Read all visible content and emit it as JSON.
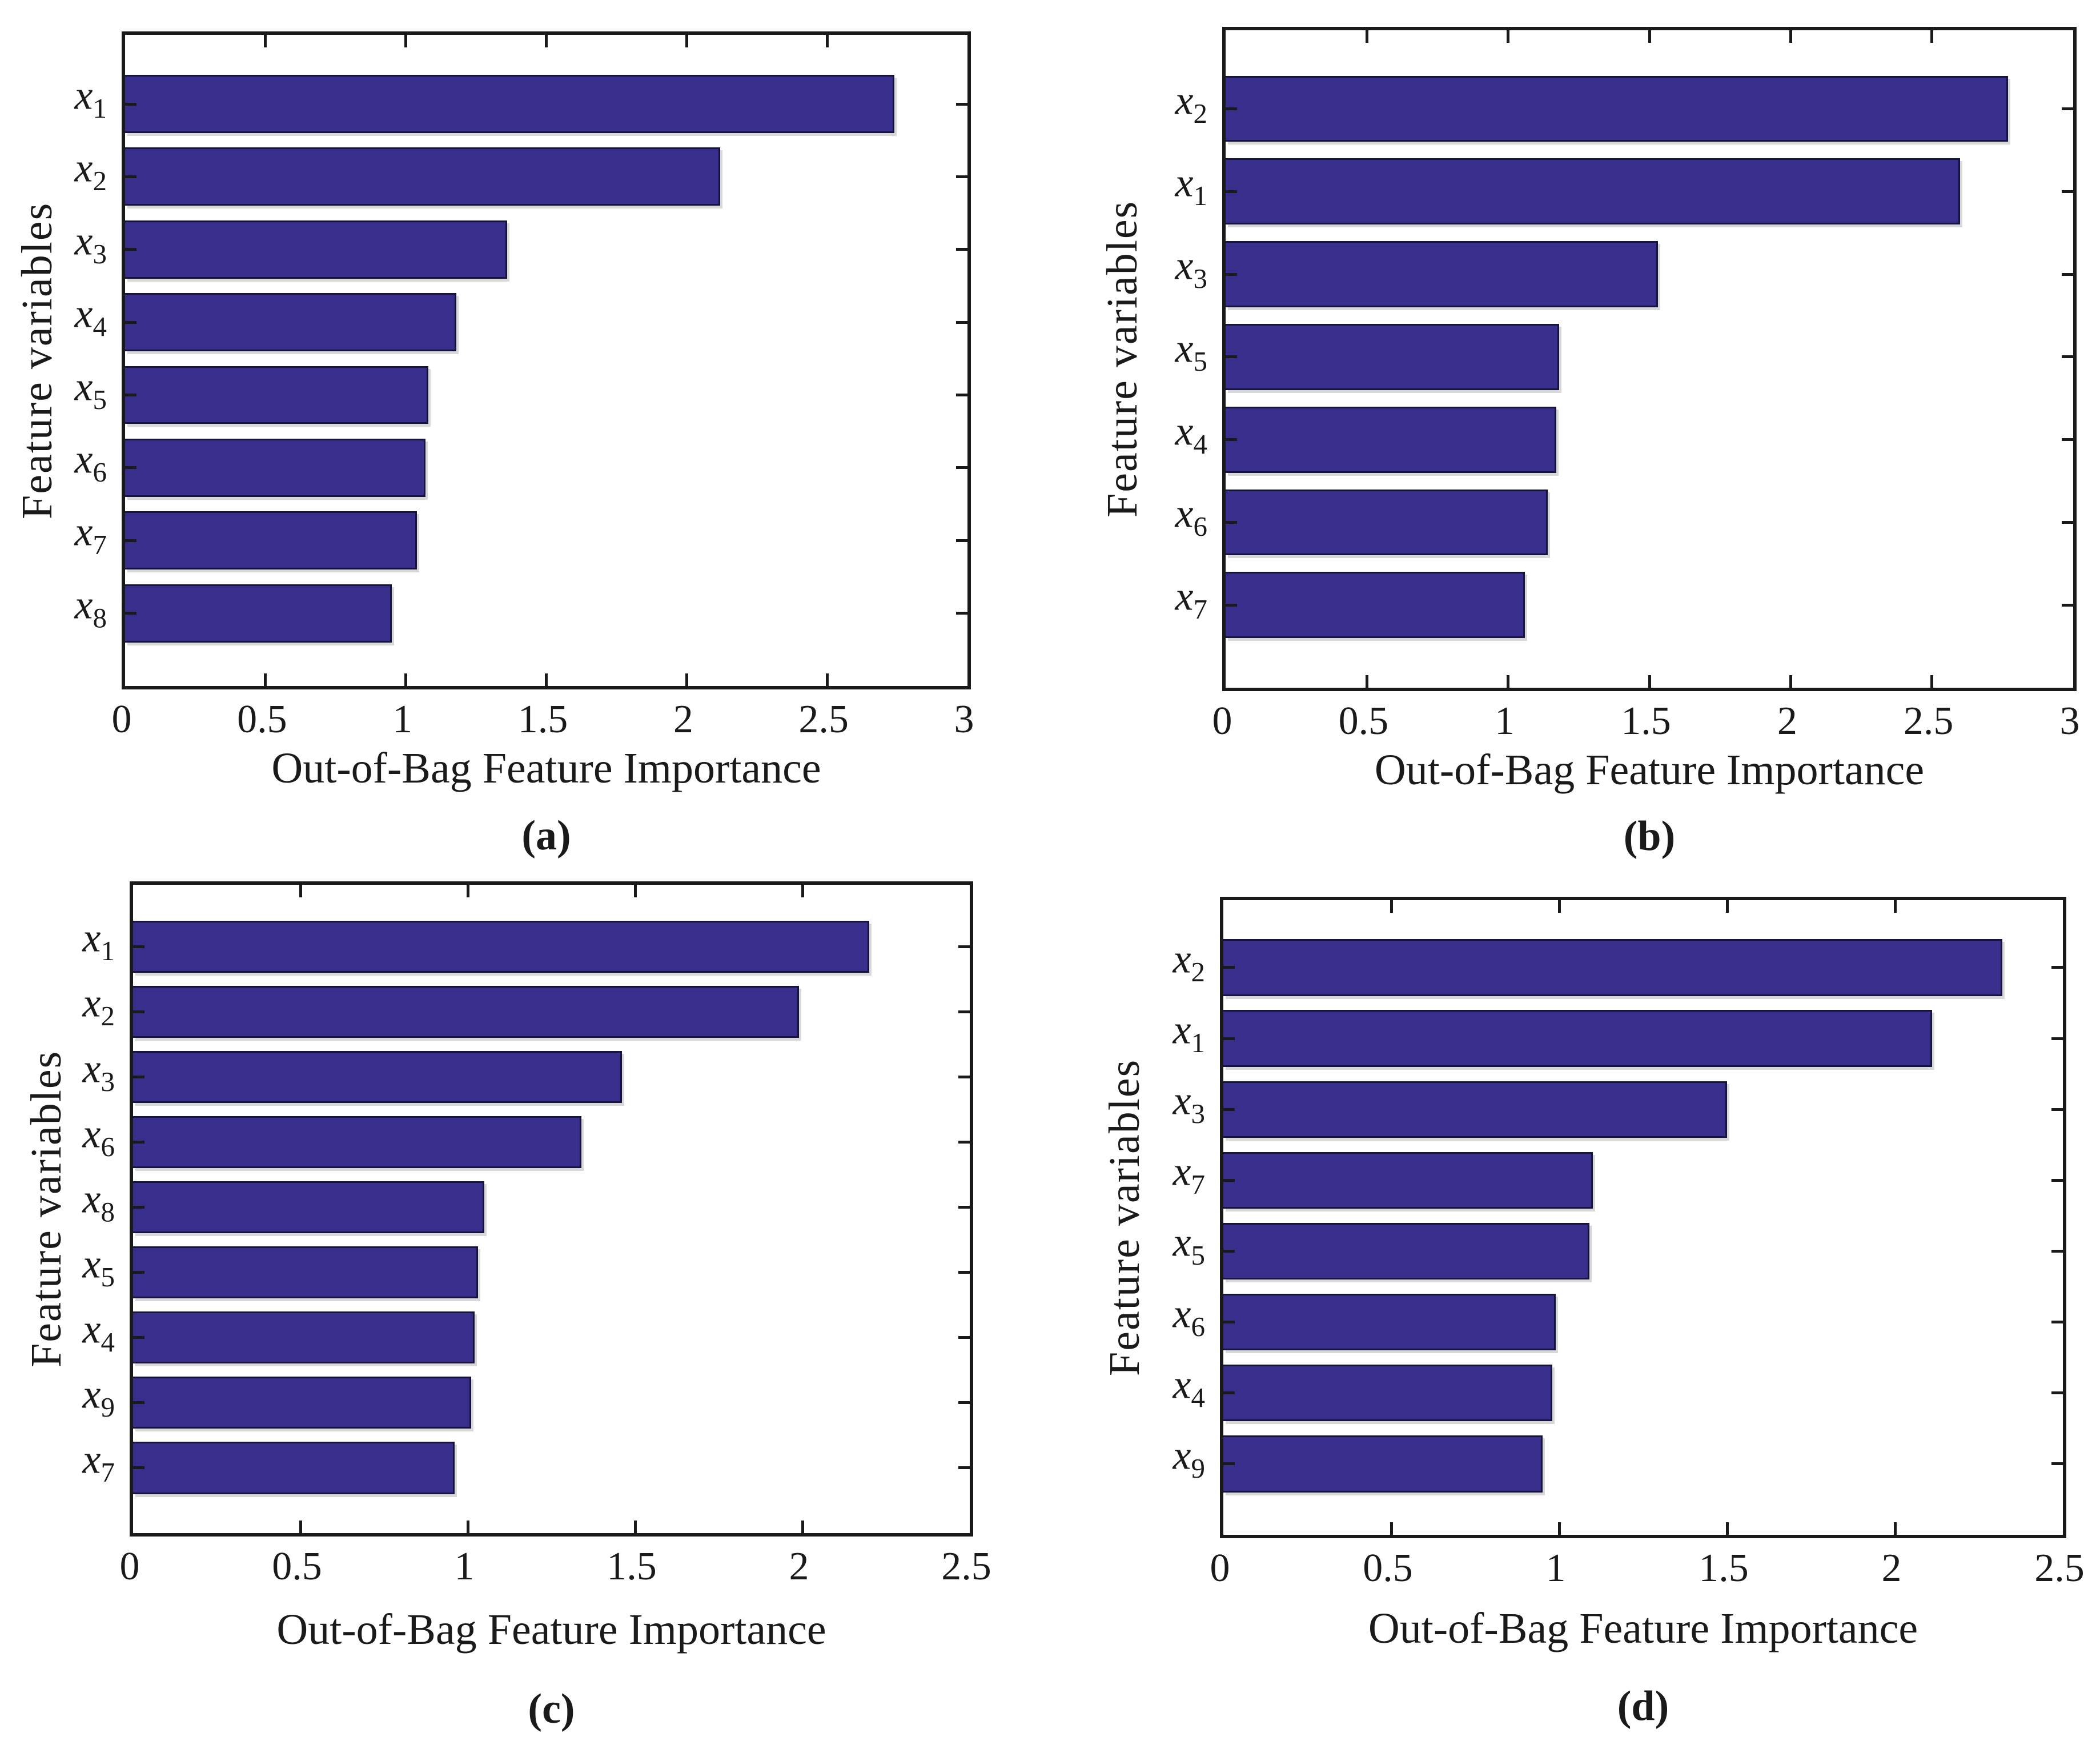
{
  "figure": {
    "background": "#ffffff",
    "bar_fill": "#372F8B",
    "bar_edge": "#16143C",
    "axis_color": "#1A1A1A",
    "text_color": "#1A1A1A"
  },
  "chart_data": [
    {
      "id": "a",
      "type": "bar",
      "orientation": "horizontal",
      "caption": "(a)",
      "xlabel": "Out-of-Bag Feature Importance",
      "ylabel": "Feature variables",
      "xlim": [
        0,
        3
      ],
      "xticks": [
        0,
        0.5,
        1,
        1.5,
        2,
        2.5,
        3
      ],
      "xtick_labels": [
        "0",
        "0.5",
        "1",
        "1.5",
        "2",
        "2.5",
        "3"
      ],
      "categories": [
        "x_1",
        "x_2",
        "x_3",
        "x_4",
        "x_5",
        "x_6",
        "x_7",
        "x_8"
      ],
      "values": [
        2.74,
        2.12,
        1.36,
        1.18,
        1.08,
        1.07,
        1.04,
        0.95
      ],
      "bar_color": "#372F8B",
      "grid": false,
      "legend": false
    },
    {
      "id": "b",
      "type": "bar",
      "orientation": "horizontal",
      "caption": "(b)",
      "xlabel": "Out-of-Bag Feature Importance",
      "ylabel": "Feature variables",
      "xlim": [
        0,
        3
      ],
      "xticks": [
        0,
        0.5,
        1,
        1.5,
        2,
        2.5,
        3
      ],
      "xtick_labels": [
        "0",
        "0.5",
        "1",
        "1.5",
        "2",
        "2.5",
        "3"
      ],
      "categories": [
        "x_2",
        "x_1",
        "x_3",
        "x_5",
        "x_4",
        "x_6",
        "x_7"
      ],
      "values": [
        2.77,
        2.6,
        1.53,
        1.18,
        1.17,
        1.14,
        1.06
      ],
      "bar_color": "#372F8B",
      "grid": false,
      "legend": false
    },
    {
      "id": "c",
      "type": "bar",
      "orientation": "horizontal",
      "caption": "(c)",
      "xlabel": "Out-of-Bag Feature Importance",
      "ylabel": "Feature variables",
      "xlim": [
        0,
        2.5
      ],
      "xticks": [
        0,
        0.5,
        1,
        1.5,
        2,
        2.5
      ],
      "xtick_labels": [
        "0",
        "0.5",
        "1",
        "1.5",
        "2",
        "2.5"
      ],
      "categories": [
        "x_1",
        "x_2",
        "x_3",
        "x_6",
        "x_8",
        "x_5",
        "x_4",
        "x_9",
        "x_7"
      ],
      "values": [
        2.2,
        1.99,
        1.46,
        1.34,
        1.05,
        1.03,
        1.02,
        1.01,
        0.96
      ],
      "bar_color": "#372F8B",
      "grid": false,
      "legend": false
    },
    {
      "id": "d",
      "type": "bar",
      "orientation": "horizontal",
      "caption": "(d)",
      "xlabel": "Out-of-Bag Feature Importance",
      "ylabel": "Feature variables",
      "xlim": [
        0,
        2.5
      ],
      "xticks": [
        0,
        0.5,
        1,
        1.5,
        2,
        2.5
      ],
      "xtick_labels": [
        "0",
        "0.5",
        "1",
        "1.5",
        "2",
        "2.5"
      ],
      "categories": [
        "x_2",
        "x_1",
        "x_3",
        "x_7",
        "x_5",
        "x_6",
        "x_4",
        "x_9"
      ],
      "values": [
        2.32,
        2.11,
        1.5,
        1.1,
        1.09,
        0.99,
        0.98,
        0.95
      ],
      "bar_color": "#372F8B",
      "grid": false,
      "legend": false
    }
  ]
}
